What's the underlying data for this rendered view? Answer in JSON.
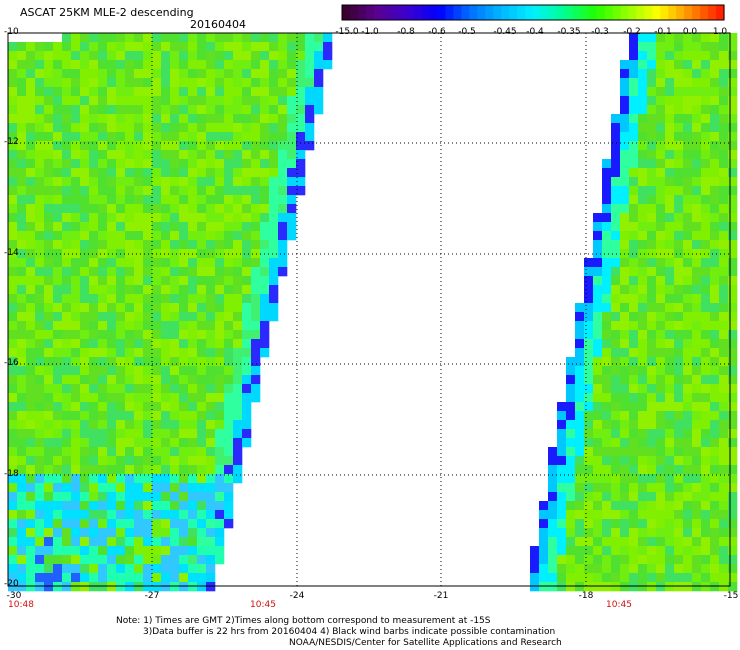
{
  "header": {
    "title": "ASCAT 25KM MLE-2 descending",
    "date": "20160404"
  },
  "colorbar": {
    "labels": [
      "-15.0",
      "-1.0",
      "-0.8",
      "-0.6",
      "-0.5",
      "-0.45",
      "-0.4",
      "-0.35",
      "-0.3",
      "-0.2",
      "-0.1",
      "0.0",
      "1.0"
    ],
    "colors": [
      "#3a0030",
      "#5a0090",
      "#3a00d0",
      "#0000ff",
      "#0070ff",
      "#00b8ff",
      "#00f0ff",
      "#00ff90",
      "#20ff00",
      "#90ff00",
      "#ffff00",
      "#ff9000",
      "#ff2000"
    ]
  },
  "map": {
    "lat_labels": [
      "-10",
      "-12",
      "-14",
      "-16",
      "-18",
      "-20"
    ],
    "lon_labels": [
      "-27",
      "-24",
      "-21",
      "-18",
      "-15"
    ],
    "corner_label": "-30",
    "time_labels": [
      "10:48",
      "10:45",
      "10:45"
    ]
  },
  "notes": {
    "line1": "Note: 1) Times are GMT 2)Times along bottom correspond to measurement at -15S",
    "line2": "3)Data buffer is 22 hrs from 20160404 4) Black wind barbs indicate possible contamination",
    "line3": "NOAA/NESDIS/Center for Satellite Applications and Research"
  }
}
